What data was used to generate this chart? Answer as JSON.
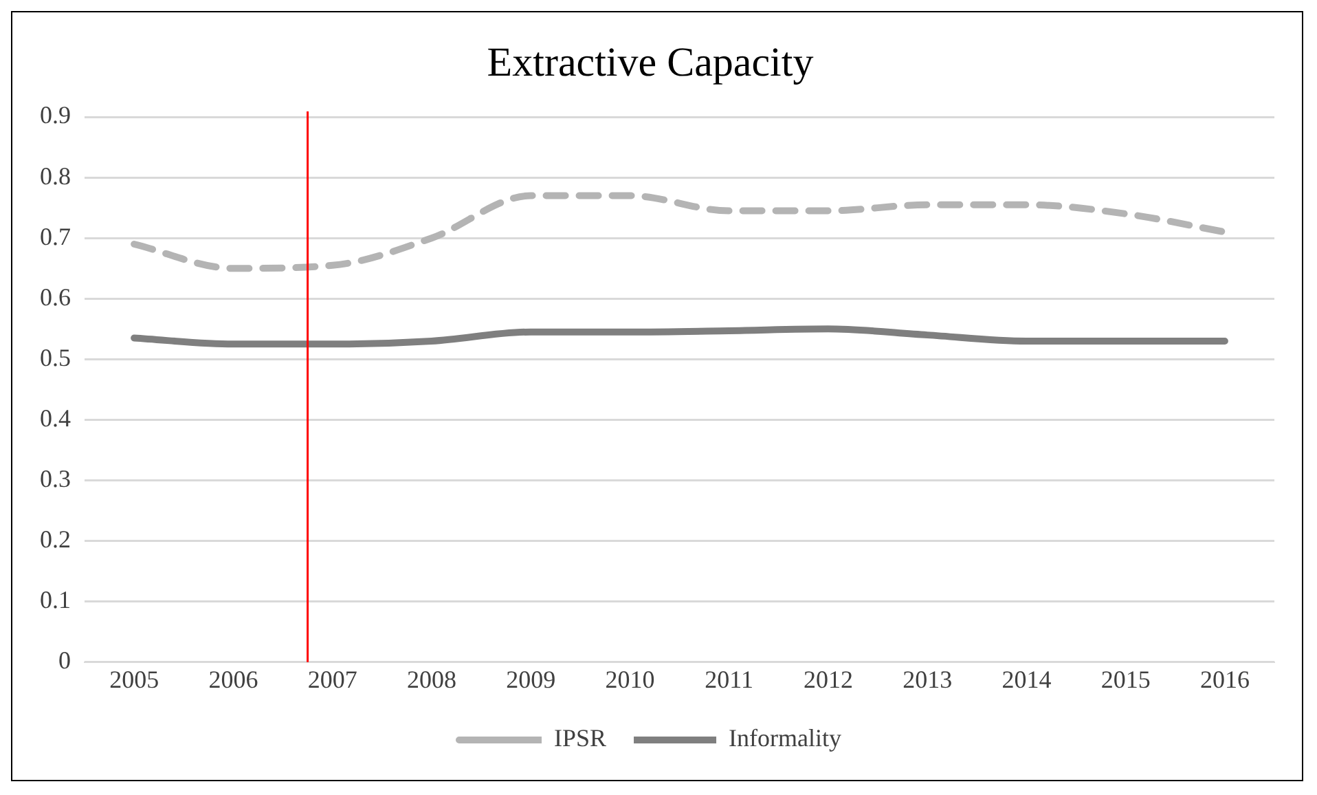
{
  "chart_data": {
    "type": "line",
    "title": "Extractive Capacity",
    "x": [
      2005,
      2006,
      2007,
      2008,
      2009,
      2010,
      2011,
      2012,
      2013,
      2014,
      2015,
      2016
    ],
    "xlim": [
      2004.5,
      2016.5
    ],
    "xticks": [
      2005,
      2006,
      2007,
      2008,
      2009,
      2010,
      2011,
      2012,
      2013,
      2014,
      2015,
      2016
    ],
    "ylim": [
      0,
      0.9
    ],
    "yticks": [
      0,
      0.1,
      0.2,
      0.3,
      0.4,
      0.5,
      0.6,
      0.7,
      0.8,
      0.9
    ],
    "series": [
      {
        "name": "IPSR",
        "color": "#b4b4b4",
        "line_style": "dashed",
        "values": [
          0.69,
          0.65,
          0.655,
          0.7,
          0.77,
          0.77,
          0.745,
          0.745,
          0.755,
          0.755,
          0.74,
          0.71
        ]
      },
      {
        "name": "Informality",
        "color": "#7f7f7f",
        "line_style": "solid",
        "values": [
          0.535,
          0.525,
          0.525,
          0.53,
          0.545,
          0.545,
          0.547,
          0.55,
          0.54,
          0.53,
          0.53,
          0.53
        ]
      }
    ],
    "ref_lines": [
      {
        "axis": "x",
        "value": 2006.75,
        "color": "#ff0000"
      }
    ],
    "grid": "y",
    "legend": "bottom",
    "marker": "none"
  }
}
